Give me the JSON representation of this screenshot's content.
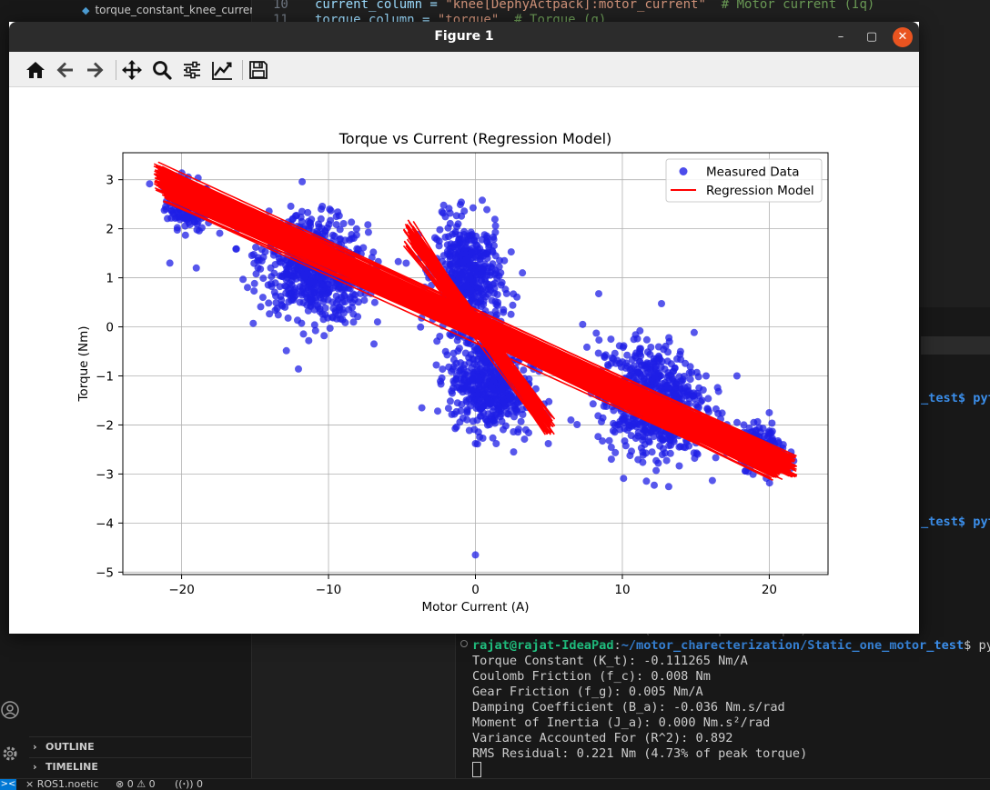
{
  "explorer": {
    "file_tab": "torque_constant_knee_current...",
    "outline_label": "OUTLINE",
    "timeline_label": "TIMELINE"
  },
  "editor": {
    "line1_no": "10",
    "line1_code_a": "current_column = ",
    "line1_code_str": "\"knee[DephyActpack]:motor_current\"",
    "line1_code_cmt": "  # Motor current (Iq)",
    "line2_no": "11",
    "line2_code_a": "torque_column = ",
    "line2_code_str": "\"torque\"",
    "line2_code_cmt": "  # Torque (g)"
  },
  "terminal": {
    "frag1": "_test$ pyt",
    "frag2": "_test$ pyt",
    "partial_line": "RMS Residual: 0.221 Nm (4.73% of peak torque)",
    "prompt_user": "rajat@rajat-IdeaPad",
    "prompt_sep": ":",
    "prompt_path": "~/motor_charecterization/Static_one_motor_test",
    "prompt_tail": "$ pyt",
    "lines": [
      "Torque Constant (K_t): -0.111265 Nm/A",
      "Coulomb Friction (f_c): 0.008 Nm",
      "Gear Friction (f_g): 0.005 Nm/A",
      "Damping Coefficient (B_a): -0.036 Nm.s/rad",
      "Moment of Inertia (J_a): 0.000 Nm.s²/rad",
      "Variance Accounted For (R^2): 0.892",
      "RMS Residual: 0.221 Nm (4.73% of peak torque)"
    ]
  },
  "statusbar": {
    "remote": "><",
    "branch": "ROS1.noetic",
    "problems": "⊗ 0 ⚠ 0",
    "ports": "((ꞏ)) 0"
  },
  "figure": {
    "window_title": "Figure 1",
    "minimize_icon": "–",
    "maximize_icon": "▢",
    "close_icon": "✕"
  },
  "chart_data": {
    "type": "scatter",
    "title": "Torque vs Current (Regression Model)",
    "xlabel": "Motor Current (A)",
    "ylabel": "Torque (Nm)",
    "xlim": [
      -24,
      24
    ],
    "ylim": [
      -5.05,
      3.55
    ],
    "xticks": [
      -20,
      -10,
      0,
      10,
      20
    ],
    "xtick_labels": [
      "−20",
      "−10",
      "0",
      "10",
      "20"
    ],
    "yticks": [
      3,
      2,
      1,
      0,
      -1,
      -2,
      -3,
      -4,
      -5
    ],
    "ytick_labels": [
      "3",
      "2",
      "1",
      "0",
      "−1",
      "−2",
      "−3",
      "−4",
      "−5"
    ],
    "grid": true,
    "legend_position": "top-right",
    "colors": {
      "measured": "#1f1fe6",
      "regression": "#ff0000"
    },
    "series": [
      {
        "name": "Measured Data",
        "kind": "scatter",
        "clusters": [
          {
            "cx": -19.5,
            "cy": 2.5,
            "sx": 1.1,
            "sy": 0.35,
            "n": 220
          },
          {
            "cx": -11.0,
            "cy": 1.2,
            "sx": 2.6,
            "sy": 0.75,
            "n": 700
          },
          {
            "cx": -0.5,
            "cy": 1.0,
            "sx": 1.6,
            "sy": 0.8,
            "n": 500
          },
          {
            "cx": 1.0,
            "cy": -1.2,
            "sx": 2.0,
            "sy": 0.65,
            "n": 500
          },
          {
            "cx": 12.0,
            "cy": -1.5,
            "sx": 2.6,
            "sy": 0.8,
            "n": 700
          },
          {
            "cx": 19.5,
            "cy": -2.5,
            "sx": 1.2,
            "sy": 0.3,
            "n": 220
          }
        ],
        "points": [
          {
            "x": 0.0,
            "y": -4.65
          },
          {
            "x": 0.0,
            "y": -2.38
          },
          {
            "x": -10.3,
            "y": -0.18
          },
          {
            "x": 7.3,
            "y": 0.05
          },
          {
            "x": -2.2,
            "y": 2.32
          },
          {
            "x": 15.7,
            "y": -1.0
          },
          {
            "x": 17.8,
            "y": -1.0
          },
          {
            "x": 20.0,
            "y": -1.75
          },
          {
            "x": -20.8,
            "y": 1.3
          },
          {
            "x": -19.0,
            "y": 1.2
          },
          {
            "x": 2.6,
            "y": -2.55
          },
          {
            "x": 6.5,
            "y": -1.9
          },
          {
            "x": 3.2,
            "y": 1.1
          }
        ]
      },
      {
        "name": "Regression Model",
        "kind": "line",
        "bands": [
          {
            "x1": -21.5,
            "y1": 3.05,
            "x2": 21.5,
            "y2": -2.85,
            "spread": 0.22,
            "n": 90
          },
          {
            "x1": -21.0,
            "y1": 2.8,
            "x2": 20.5,
            "y2": -2.95,
            "spread": 0.18,
            "n": 60
          },
          {
            "x1": -4.5,
            "y1": 1.9,
            "x2": 5.0,
            "y2": -2.0,
            "spread": 0.2,
            "n": 50
          }
        ]
      }
    ]
  }
}
